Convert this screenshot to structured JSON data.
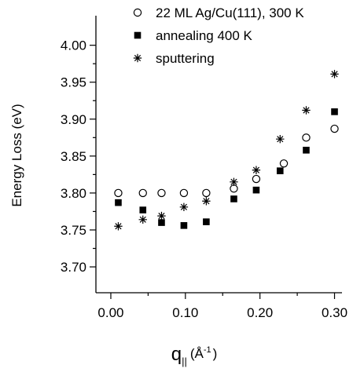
{
  "chart_data": {
    "type": "scatter",
    "title": "",
    "xlabel": {
      "main": "q",
      "subscript": "||",
      "unit_prefix": "(",
      "unit": "Å",
      "unit_sup": "-1",
      "unit_suffix": ")"
    },
    "ylabel": "Energy Loss (eV)",
    "xlim": [
      -0.02,
      0.31
    ],
    "ylim": [
      3.665,
      4.04
    ],
    "xticks": [
      0.0,
      0.1,
      0.2,
      0.3
    ],
    "xtick_labels": [
      "0.00",
      "0.10",
      "0.20",
      "0.30"
    ],
    "xminor": [
      0.05,
      0.15,
      0.25
    ],
    "yticks": [
      3.7,
      3.75,
      3.8,
      3.85,
      3.9,
      3.95,
      4.0
    ],
    "ytick_labels": [
      "3.70",
      "3.75",
      "3.80",
      "3.85",
      "3.90",
      "3.95",
      "4.00"
    ],
    "yminor": [
      3.725,
      3.775,
      3.825,
      3.875,
      3.925,
      3.975
    ],
    "grid": false,
    "legend_position": "top-right",
    "series": [
      {
        "name": "22 ML Ag/Cu(111), 300 K",
        "marker": "open-circle",
        "color": "#000000",
        "x": [
          0.01,
          0.043,
          0.068,
          0.098,
          0.128,
          0.165,
          0.195,
          0.232,
          0.262,
          0.3
        ],
        "y": [
          3.8,
          3.8,
          3.8,
          3.8,
          3.8,
          3.806,
          3.819,
          3.84,
          3.875,
          3.887
        ]
      },
      {
        "name": "annealing 400 K",
        "marker": "filled-square",
        "color": "#000000",
        "x": [
          0.01,
          0.043,
          0.068,
          0.098,
          0.128,
          0.165,
          0.195,
          0.227,
          0.262,
          0.3
        ],
        "y": [
          3.787,
          3.777,
          3.76,
          3.756,
          3.761,
          3.792,
          3.804,
          3.83,
          3.858,
          3.91
        ]
      },
      {
        "name": "sputtering",
        "marker": "asterisk",
        "color": "#000000",
        "x": [
          0.01,
          0.043,
          0.068,
          0.098,
          0.128,
          0.165,
          0.195,
          0.227,
          0.262,
          0.3
        ],
        "y": [
          3.755,
          3.764,
          3.769,
          3.781,
          3.789,
          3.815,
          3.831,
          3.873,
          3.912,
          3.961
        ]
      }
    ]
  }
}
